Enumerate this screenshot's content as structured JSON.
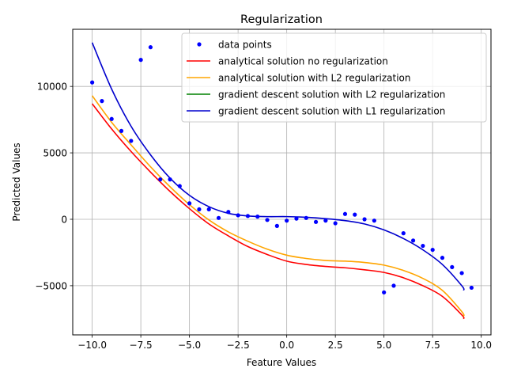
{
  "chart_data": {
    "type": "line",
    "title": "Regularization",
    "xlabel": "Feature Values",
    "ylabel": "Predicted Values",
    "xlim": [
      -11,
      10.5
    ],
    "ylim": [
      -8700,
      14300
    ],
    "grid": true,
    "legend": "top-right",
    "xticks": [
      -10.0,
      -7.5,
      -5.0,
      -2.5,
      0.0,
      2.5,
      5.0,
      7.5,
      10.0
    ],
    "xtick_labels": [
      "−10.0",
      "−7.5",
      "−5.0",
      "−2.5",
      "0.0",
      "2.5",
      "5.0",
      "7.5",
      "10.0"
    ],
    "yticks": [
      -5000,
      0,
      5000,
      10000
    ],
    "ytick_labels": [
      "−5000",
      "0",
      "5000",
      "10000"
    ],
    "scatter": {
      "name": "data points",
      "color": "#0000ff",
      "x": [
        -10,
        -9.5,
        -9,
        -8.5,
        -8,
        -7.5,
        -7,
        -6.5,
        -6,
        -5.5,
        -5,
        -4.5,
        -4,
        -3.5,
        -3,
        -2.5,
        -2,
        -1.5,
        -1,
        -0.5,
        0,
        0.5,
        1,
        1.5,
        2,
        2.5,
        3,
        3.5,
        4,
        4.5,
        5,
        5.5,
        6,
        6.5,
        7,
        7.5,
        8,
        8.5,
        9,
        9.5
      ],
      "y": [
        10300,
        8900,
        7550,
        6650,
        5900,
        12000,
        12950,
        3000,
        3000,
        2500,
        1200,
        750,
        750,
        100,
        550,
        300,
        250,
        200,
        -50,
        -500,
        -100,
        50,
        100,
        -200,
        -100,
        -300,
        400,
        350,
        0,
        -100,
        -5500,
        -5000,
        -1050,
        -1600,
        -2000,
        -2300,
        -2900,
        -3600,
        -4050,
        -5150
      ]
    },
    "series": [
      {
        "name": "analytical solution no regularization",
        "color": "#ff0000",
        "x": [
          -10,
          -9,
          -8,
          -7,
          -6,
          -5,
          -4,
          -3,
          -2,
          -1,
          0,
          1,
          2,
          3,
          4,
          5,
          6,
          7,
          8,
          9,
          9.1
        ],
        "y": [
          8700,
          6800,
          5100,
          3550,
          2100,
          800,
          -350,
          -1250,
          -2050,
          -2650,
          -3150,
          -3400,
          -3550,
          -3650,
          -3800,
          -4000,
          -4400,
          -5000,
          -5800,
          -7200,
          -7500
        ]
      },
      {
        "name": "analytical solution with L2 regularization",
        "color": "#ffa500",
        "x": [
          -10,
          -9,
          -8,
          -7,
          -6,
          -5,
          -4,
          -3,
          -2,
          -1,
          0,
          1,
          2,
          3,
          4,
          5,
          6,
          7,
          8,
          9,
          9.1
        ],
        "y": [
          9300,
          7300,
          5600,
          3950,
          2450,
          1100,
          -50,
          -950,
          -1650,
          -2250,
          -2700,
          -2950,
          -3100,
          -3150,
          -3250,
          -3450,
          -3850,
          -4450,
          -5350,
          -6950,
          -7300
        ]
      },
      {
        "name": "gradient descent solution with L2 regularization",
        "color": "#008000",
        "x": [],
        "y": []
      },
      {
        "name": "gradient descent solution with L1 regularization",
        "color": "#0000cd",
        "x": [
          -10,
          -9,
          -8,
          -7,
          -6,
          -5,
          -4,
          -3,
          -2,
          -1,
          0,
          1,
          2,
          3,
          4,
          5,
          6,
          7,
          8,
          9,
          9.1
        ],
        "y": [
          13300,
          9800,
          7000,
          4850,
          3100,
          1800,
          950,
          450,
          250,
          200,
          200,
          150,
          50,
          -100,
          -350,
          -800,
          -1450,
          -2300,
          -3400,
          -5000,
          -5350
        ]
      }
    ]
  }
}
